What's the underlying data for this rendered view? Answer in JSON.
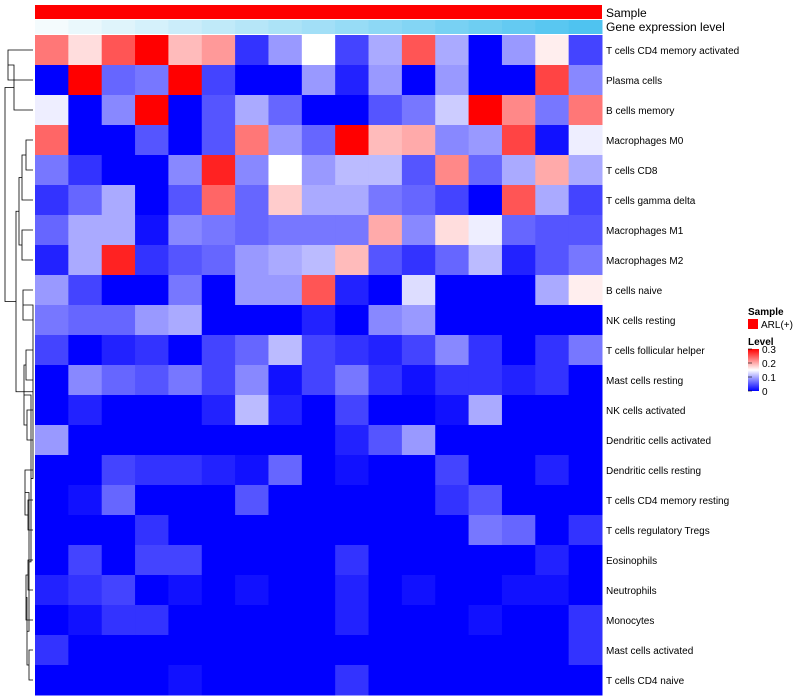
{
  "chart_data": {
    "type": "heatmap",
    "title": "",
    "annotation_tracks": [
      {
        "name": "Sample",
        "kind": "categorical",
        "value": "ARL(+)",
        "color": "#ff0000"
      },
      {
        "name": "Gene expression level",
        "kind": "gradient",
        "from_color": "#f4fbfd",
        "to_color": "#4fc3f0",
        "n_columns": 17
      }
    ],
    "rows": [
      "T cells CD4 memory activated",
      "Plasma cells",
      "B cells memory",
      "Macrophages M0",
      "T cells CD8",
      "T cells gamma delta",
      "Macrophages M1",
      "Macrophages M2",
      "B cells naive",
      "NK cells resting",
      "T cells follicular helper",
      "Mast cells resting",
      "NK cells activated",
      "Dendritic cells activated",
      "Dendritic cells resting",
      "T cells CD4 memory resting",
      "T cells regulatory  Tregs",
      "Eosinophils",
      "Neutrophils",
      "Monocytes",
      "Mast cells activated",
      "T cells CD4 naive"
    ],
    "n_columns": 17,
    "values": [
      [
        0.23,
        0.17,
        0.25,
        0.3,
        0.19,
        0.21,
        0.03,
        0.09,
        0.15,
        0.04,
        0.1,
        0.25,
        0.1,
        0.0,
        0.09,
        0.16,
        0.04
      ],
      [
        0.0,
        0.3,
        0.06,
        0.07,
        0.3,
        0.04,
        0.0,
        0.0,
        0.09,
        0.02,
        0.09,
        0.0,
        0.09,
        0.0,
        0.0,
        0.26,
        0.08
      ],
      [
        0.14,
        0.0,
        0.08,
        0.3,
        0.0,
        0.05,
        0.1,
        0.06,
        0.0,
        0.0,
        0.05,
        0.07,
        0.12,
        0.3,
        0.22,
        0.07,
        0.23
      ],
      [
        0.24,
        0.0,
        0.0,
        0.05,
        0.0,
        0.05,
        0.23,
        0.09,
        0.06,
        0.3,
        0.19,
        0.2,
        0.08,
        0.09,
        0.26,
        0.01,
        0.14
      ],
      [
        0.07,
        0.03,
        0.0,
        0.0,
        0.08,
        0.28,
        0.08,
        0.15,
        0.09,
        0.11,
        0.11,
        0.05,
        0.22,
        0.06,
        0.1,
        0.2,
        0.1
      ],
      [
        0.03,
        0.06,
        0.1,
        0.0,
        0.05,
        0.24,
        0.06,
        0.18,
        0.1,
        0.1,
        0.07,
        0.06,
        0.04,
        0.0,
        0.25,
        0.1,
        0.04
      ],
      [
        0.06,
        0.1,
        0.1,
        0.01,
        0.08,
        0.07,
        0.06,
        0.07,
        0.07,
        0.07,
        0.2,
        0.08,
        0.17,
        0.14,
        0.06,
        0.05,
        0.05
      ],
      [
        0.02,
        0.1,
        0.28,
        0.03,
        0.05,
        0.06,
        0.09,
        0.1,
        0.11,
        0.19,
        0.05,
        0.03,
        0.06,
        0.11,
        0.02,
        0.05,
        0.07
      ],
      [
        0.09,
        0.04,
        0.0,
        0.0,
        0.07,
        0.0,
        0.09,
        0.09,
        0.25,
        0.02,
        0.0,
        0.13,
        0.0,
        0.0,
        0.0,
        0.1,
        0.16
      ],
      [
        0.07,
        0.06,
        0.06,
        0.09,
        0.1,
        0.0,
        0.0,
        0.0,
        0.02,
        0.0,
        0.08,
        0.09,
        0.0,
        0.0,
        0.0,
        0.0,
        0.0
      ],
      [
        0.04,
        0.0,
        0.02,
        0.03,
        0.0,
        0.04,
        0.06,
        0.11,
        0.04,
        0.03,
        0.02,
        0.04,
        0.08,
        0.03,
        0.0,
        0.03,
        0.07
      ],
      [
        0.0,
        0.08,
        0.06,
        0.05,
        0.07,
        0.04,
        0.08,
        0.01,
        0.04,
        0.07,
        0.03,
        0.01,
        0.03,
        0.03,
        0.02,
        0.03,
        0.0
      ],
      [
        0.0,
        0.02,
        0.0,
        0.0,
        0.0,
        0.02,
        0.11,
        0.02,
        0.0,
        0.04,
        0.0,
        0.0,
        0.01,
        0.1,
        0.0,
        0.0,
        0.0
      ],
      [
        0.09,
        0.0,
        0.0,
        0.0,
        0.0,
        0.0,
        0.0,
        0.0,
        0.0,
        0.02,
        0.05,
        0.09,
        0.0,
        0.0,
        0.0,
        0.0,
        0.0
      ],
      [
        0.0,
        0.0,
        0.04,
        0.03,
        0.03,
        0.02,
        0.01,
        0.06,
        0.0,
        0.01,
        0.0,
        0.0,
        0.04,
        0.0,
        0.0,
        0.02,
        0.0
      ],
      [
        0.0,
        0.01,
        0.06,
        0.0,
        0.0,
        0.0,
        0.05,
        0.0,
        0.0,
        0.0,
        0.0,
        0.0,
        0.03,
        0.05,
        0.0,
        0.0,
        0.0
      ],
      [
        0.0,
        0.0,
        0.0,
        0.03,
        0.0,
        0.0,
        0.0,
        0.0,
        0.0,
        0.0,
        0.0,
        0.0,
        0.0,
        0.07,
        0.06,
        0.0,
        0.03
      ],
      [
        0.0,
        0.04,
        0.0,
        0.04,
        0.04,
        0.0,
        0.0,
        0.0,
        0.0,
        0.03,
        0.0,
        0.0,
        0.0,
        0.0,
        0.0,
        0.02,
        0.0
      ],
      [
        0.02,
        0.03,
        0.04,
        0.0,
        0.01,
        0.0,
        0.01,
        0.0,
        0.0,
        0.02,
        0.0,
        0.01,
        0.0,
        0.0,
        0.01,
        0.01,
        0.0
      ],
      [
        0.0,
        0.01,
        0.03,
        0.03,
        0.0,
        0.0,
        0.0,
        0.0,
        0.0,
        0.02,
        0.0,
        0.0,
        0.0,
        0.01,
        0.0,
        0.0,
        0.03
      ],
      [
        0.03,
        0.0,
        0.0,
        0.0,
        0.0,
        0.0,
        0.0,
        0.0,
        0.0,
        0.0,
        0.0,
        0.0,
        0.0,
        0.0,
        0.0,
        0.0,
        0.03
      ],
      [
        0.0,
        0.0,
        0.0,
        0.0,
        0.01,
        0.0,
        0.0,
        0.0,
        0.0,
        0.03,
        0.0,
        0.0,
        0.0,
        0.0,
        0.0,
        0.0,
        0.0
      ]
    ],
    "color_scale": {
      "min": 0,
      "mid": 0.15,
      "max": 0.3,
      "low_color": "#0000ff",
      "mid_color": "#ffffff",
      "high_color": "#ff0000"
    },
    "legend": {
      "sample_title": "Sample",
      "sample_entry": "ARL(+)",
      "level_title": "Level",
      "ticks": [
        "0.3",
        "0.2",
        "0.1",
        "0"
      ],
      "tick_values": [
        0.3,
        0.2,
        0.1,
        0
      ]
    },
    "dendrogram": "rows"
  }
}
